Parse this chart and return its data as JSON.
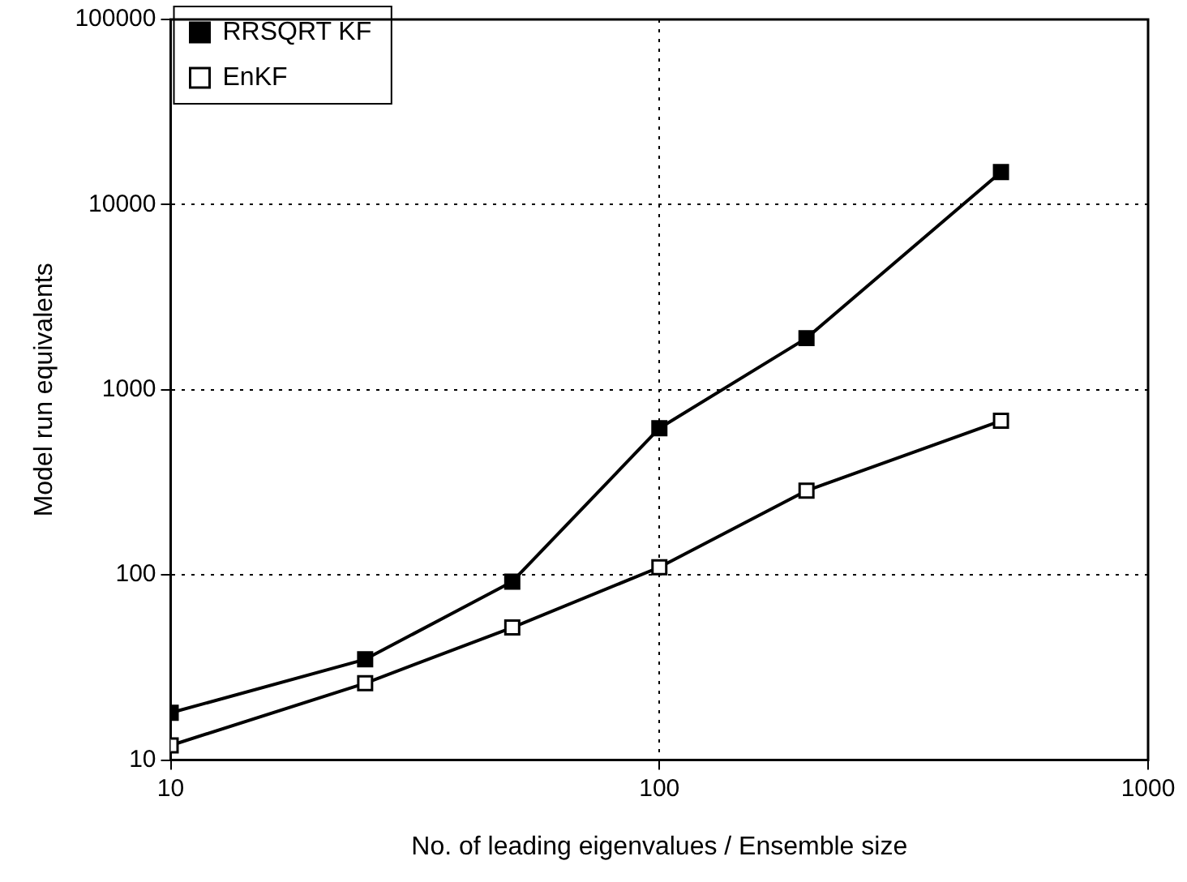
{
  "chart_data": {
    "type": "line",
    "xlabel": "No. of leading eigenvalues / Ensemble size",
    "ylabel": "Model run equivalents",
    "x": [
      10,
      25,
      50,
      100,
      200,
      500
    ],
    "series": [
      {
        "name": "RRSQRT KF",
        "color": "#000000",
        "values": [
          18,
          35,
          92,
          620,
          1900,
          15000
        ]
      },
      {
        "name": "EnKF",
        "color": "#000000",
        "values": [
          12,
          26,
          52,
          110,
          285,
          680
        ]
      }
    ],
    "log": "xy",
    "xlim": [
      10,
      1000
    ],
    "xticks": [
      10,
      100,
      1000
    ],
    "ylim": [
      10,
      100000
    ],
    "yticks": [
      10,
      100,
      1000,
      10000,
      100000
    ],
    "grid": true,
    "legend": "top left",
    "marker": "square",
    "line_style": "solid"
  }
}
